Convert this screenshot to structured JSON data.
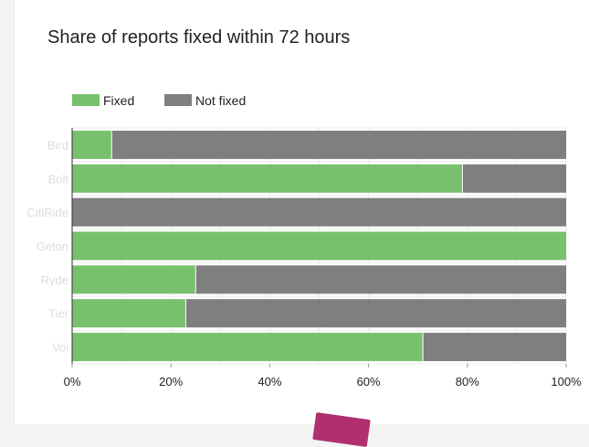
{
  "chart_data": {
    "type": "bar",
    "orientation": "horizontal",
    "stacked": true,
    "title": "Share of reports fixed within 72 hours",
    "categories": [
      "Bird",
      "Bolt",
      "CitiRide",
      "Geton",
      "Ryde",
      "Tier",
      "Voi"
    ],
    "series": [
      {
        "name": "Fixed",
        "color": "#78c06e",
        "values": [
          8,
          79,
          0,
          100,
          25,
          23,
          71
        ]
      },
      {
        "name": "Not fixed",
        "color": "#7f7f7f",
        "values": [
          92,
          21,
          100,
          0,
          75,
          77,
          29
        ]
      }
    ],
    "xticks": [
      "0%",
      "20%",
      "40%",
      "60%",
      "80%",
      "100%"
    ],
    "xlim": [
      0,
      100
    ],
    "grid": true,
    "legend_position": "top-left"
  }
}
